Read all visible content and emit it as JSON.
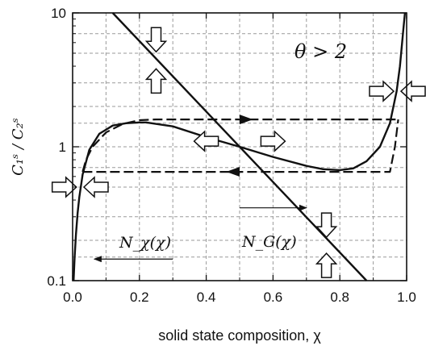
{
  "chart_data": {
    "type": "line",
    "xlabel": "solid state composition, χ",
    "ylabel": "C₁ˢ / C₂ˢ",
    "xlim": [
      0.0,
      1.0
    ],
    "ylim": [
      0.1,
      10
    ],
    "yscale": "log",
    "x_ticks": [
      "0.0",
      "0.2",
      "0.4",
      "0.6",
      "0.8",
      "1.0"
    ],
    "y_ticks": [
      "0.1",
      "1",
      "10"
    ],
    "grid": true,
    "annotation": "θ > 2",
    "series": [
      {
        "name": "N_χ(χ)",
        "style": "solid",
        "x": [
          0.003,
          0.006,
          0.01,
          0.015,
          0.02,
          0.03,
          0.05,
          0.08,
          0.12,
          0.16,
          0.2,
          0.22,
          0.3,
          0.4,
          0.5,
          0.6,
          0.7,
          0.75,
          0.8,
          0.84,
          0.88,
          0.92,
          0.95,
          0.97,
          0.98,
          0.99,
          0.995
        ],
        "y": [
          0.1,
          0.15,
          0.22,
          0.32,
          0.42,
          0.62,
          0.95,
          1.25,
          1.44,
          1.5,
          1.52,
          1.52,
          1.42,
          1.18,
          1.0,
          0.84,
          0.72,
          0.68,
          0.67,
          0.69,
          0.78,
          1.0,
          1.5,
          2.6,
          4.0,
          7.5,
          10
        ]
      },
      {
        "name": "N_G(χ)",
        "style": "solid",
        "x": [
          0.12,
          0.88
        ],
        "y": [
          10,
          0.1
        ]
      },
      {
        "name": "",
        "style": "dashed",
        "x": [
          0.03,
          0.04,
          0.06,
          0.1,
          0.15,
          0.2,
          0.25,
          0.95,
          0.97
        ],
        "y": [
          0.65,
          0.8,
          1.0,
          1.28,
          1.48,
          1.58,
          1.6,
          1.6,
          1.6
        ]
      },
      {
        "name": "",
        "style": "dashed",
        "x": [
          0.03,
          0.95,
          0.965,
          0.975
        ],
        "y": [
          0.65,
          0.65,
          1.0,
          1.6
        ]
      }
    ],
    "flow_arrows": [
      {
        "direction": "down",
        "x": 0.25,
        "y": 6.3
      },
      {
        "direction": "up",
        "x": 0.25,
        "y": 3.1
      },
      {
        "direction": "left",
        "x": 0.4,
        "y": 1.1
      },
      {
        "direction": "right",
        "x": 0.6,
        "y": 1.1
      },
      {
        "direction": "right",
        "x": 0.925,
        "y": 2.6
      },
      {
        "direction": "left",
        "x": 1.025,
        "y": 2.6
      },
      {
        "direction": "right",
        "x": -0.025,
        "y": 0.5
      },
      {
        "direction": "left",
        "x": 0.07,
        "y": 0.5
      },
      {
        "direction": "down",
        "x": 0.76,
        "y": 0.26
      },
      {
        "direction": "up",
        "x": 0.76,
        "y": 0.13
      }
    ]
  }
}
